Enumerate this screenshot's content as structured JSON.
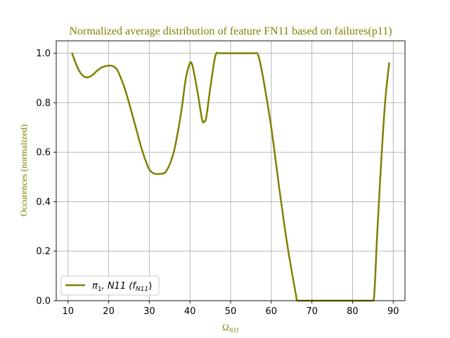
{
  "chart_data": {
    "type": "line",
    "title": "Normalized average distribution of feature FN11 based on failures(p11)",
    "xlabel": "Ω",
    "xlabel_sub": "N11",
    "ylabel": "Occurences (normalized)",
    "xlim": [
      7.1,
      92.9
    ],
    "ylim": [
      0.0,
      1.05
    ],
    "xticks": [
      10,
      20,
      30,
      40,
      50,
      60,
      70,
      80,
      90
    ],
    "yticks": [
      0.0,
      0.2,
      0.4,
      0.6,
      0.8,
      1.0
    ],
    "xtick_labels": [
      "10",
      "20",
      "30",
      "40",
      "50",
      "60",
      "70",
      "80",
      "90"
    ],
    "ytick_labels": [
      "0.0",
      "0.2",
      "0.4",
      "0.6",
      "0.8",
      "1.0"
    ],
    "grid": true,
    "legend_position": "lower-left",
    "series": [
      {
        "name_main": "π",
        "name_sub1": "1",
        "name_mid": ", N11 (f",
        "name_sub2": "N11",
        "name_end": ")",
        "color": "#808000",
        "x": [
          11,
          12,
          13,
          14,
          15,
          16,
          17,
          18,
          19,
          20,
          21,
          22,
          23,
          24,
          25,
          26,
          27,
          28,
          29,
          30,
          31,
          32,
          33,
          33.5,
          34,
          35,
          36,
          37,
          38,
          39,
          40,
          40.5,
          41,
          42,
          43,
          43.5,
          44,
          45,
          46,
          46.5,
          47,
          48,
          50,
          52,
          54,
          56,
          56.5,
          57,
          58,
          60,
          62,
          64,
          66,
          66.4,
          68,
          70,
          72,
          75,
          78,
          80,
          82,
          84,
          85.2,
          86,
          87,
          88,
          89
        ],
        "y": [
          1.0,
          0.955,
          0.922,
          0.905,
          0.903,
          0.912,
          0.927,
          0.94,
          0.947,
          0.95,
          0.948,
          0.935,
          0.9,
          0.855,
          0.8,
          0.74,
          0.68,
          0.62,
          0.57,
          0.53,
          0.515,
          0.512,
          0.513,
          0.515,
          0.52,
          0.55,
          0.6,
          0.68,
          0.78,
          0.9,
          0.96,
          0.955,
          0.92,
          0.83,
          0.73,
          0.725,
          0.74,
          0.86,
          0.97,
          1.0,
          1.0,
          1.0,
          1.0,
          1.0,
          1.0,
          1.0,
          1.0,
          0.98,
          0.9,
          0.7,
          0.45,
          0.22,
          0.03,
          0.0,
          0.0,
          0.0,
          0.0,
          0.0,
          0.0,
          0.0,
          0.0,
          0.0,
          0.0,
          0.25,
          0.55,
          0.8,
          0.96
        ]
      }
    ]
  },
  "colors": {
    "accent": "#808000",
    "grid": "#b0b0b0",
    "axis": "#000000"
  }
}
